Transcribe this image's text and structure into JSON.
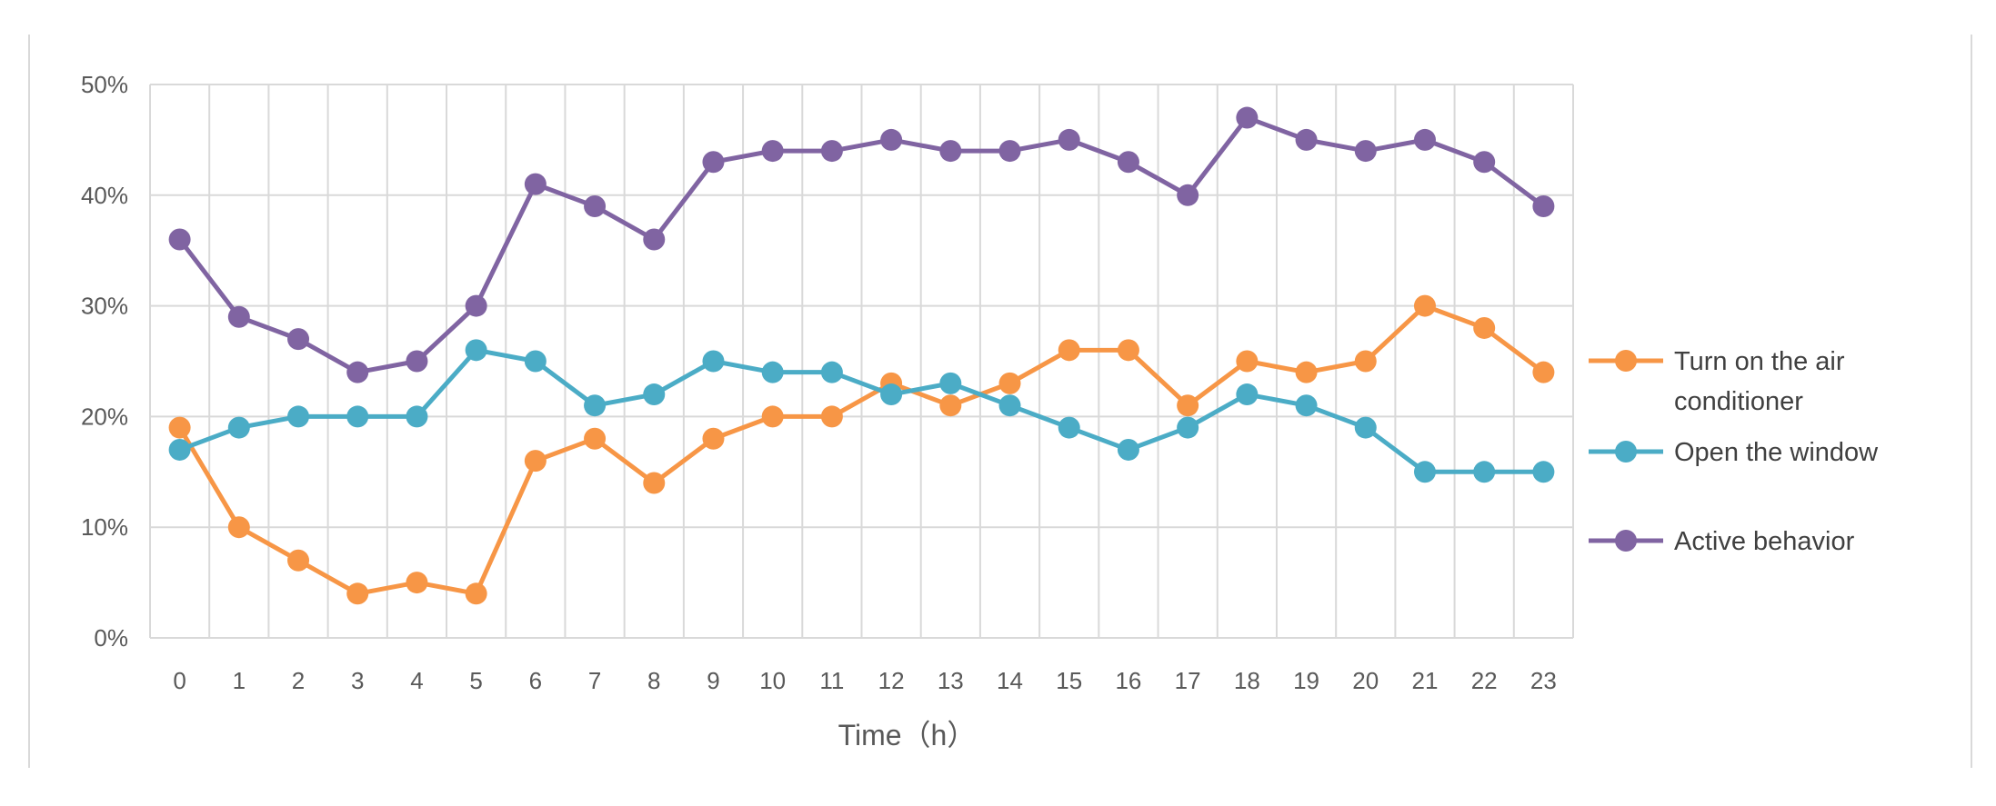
{
  "chart_data": {
    "type": "line",
    "title": "",
    "xlabel": "Time（h）",
    "ylabel": "",
    "x": [
      "0",
      "1",
      "2",
      "3",
      "4",
      "5",
      "6",
      "7",
      "8",
      "9",
      "10",
      "11",
      "12",
      "13",
      "14",
      "15",
      "16",
      "17",
      "18",
      "19",
      "20",
      "21",
      "22",
      "23"
    ],
    "ylim": [
      0,
      50
    ],
    "y_ticks": [
      0,
      10,
      20,
      30,
      40,
      50
    ],
    "y_tick_labels": [
      "0%",
      "10%",
      "20%",
      "30%",
      "40%",
      "50%"
    ],
    "grid": true,
    "legend_position": "right",
    "series": [
      {
        "name": "Turn on the air conditioner",
        "legend_lines": [
          "Turn on the air",
          "conditioner"
        ],
        "color": "#F79646",
        "values": [
          19,
          10,
          7,
          4,
          5,
          4,
          16,
          18,
          14,
          18,
          20,
          20,
          23,
          21,
          23,
          26,
          26,
          21,
          25,
          24,
          25,
          30,
          28,
          24
        ]
      },
      {
        "name": "Open the window",
        "legend_lines": [
          "Open the window"
        ],
        "color": "#4BACC6",
        "values": [
          17,
          19,
          20,
          20,
          20,
          26,
          25,
          21,
          22,
          25,
          24,
          24,
          22,
          23,
          21,
          19,
          17,
          19,
          22,
          21,
          19,
          15,
          15,
          15
        ]
      },
      {
        "name": "Active behavior",
        "legend_lines": [
          "Active behavior"
        ],
        "color": "#8064A2",
        "values": [
          36,
          29,
          27,
          24,
          25,
          30,
          41,
          39,
          36,
          43,
          44,
          44,
          45,
          44,
          44,
          45,
          43,
          40,
          47,
          45,
          44,
          45,
          43,
          39
        ]
      }
    ]
  }
}
